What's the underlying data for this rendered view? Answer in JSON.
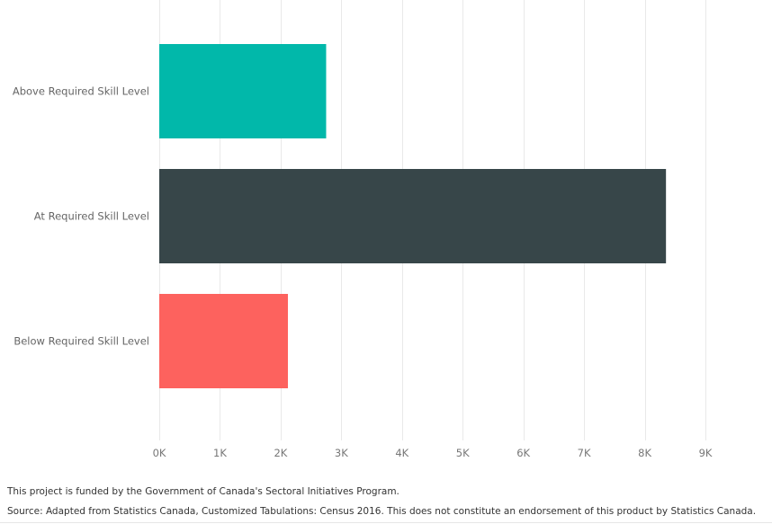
{
  "chart_data": {
    "type": "bar",
    "orientation": "horizontal",
    "categories": [
      "Above Required Skill Level",
      "At Required Skill Level",
      "Below Required Skill Level"
    ],
    "values": [
      2750,
      8350,
      2120
    ],
    "colors": [
      "#01b8aa",
      "#374649",
      "#fd625e"
    ],
    "xlim": [
      0,
      9000
    ],
    "x_ticks": [
      0,
      1000,
      2000,
      3000,
      4000,
      5000,
      6000,
      7000,
      8000,
      9000
    ],
    "x_tick_labels": [
      "0K",
      "1K",
      "2K",
      "3K",
      "4K",
      "5K",
      "6K",
      "7K",
      "8K",
      "9K"
    ],
    "title": "",
    "xlabel": "",
    "ylabel": "",
    "grid": "vertical"
  },
  "footer": {
    "funding": "This project is funded by the Government of Canada's Sectoral Initiatives Program.",
    "source": "Source: Adapted from Statistics Canada, Customized Tabulations: Census 2016. This does not constitute an endorsement of this product by Statistics Canada."
  }
}
